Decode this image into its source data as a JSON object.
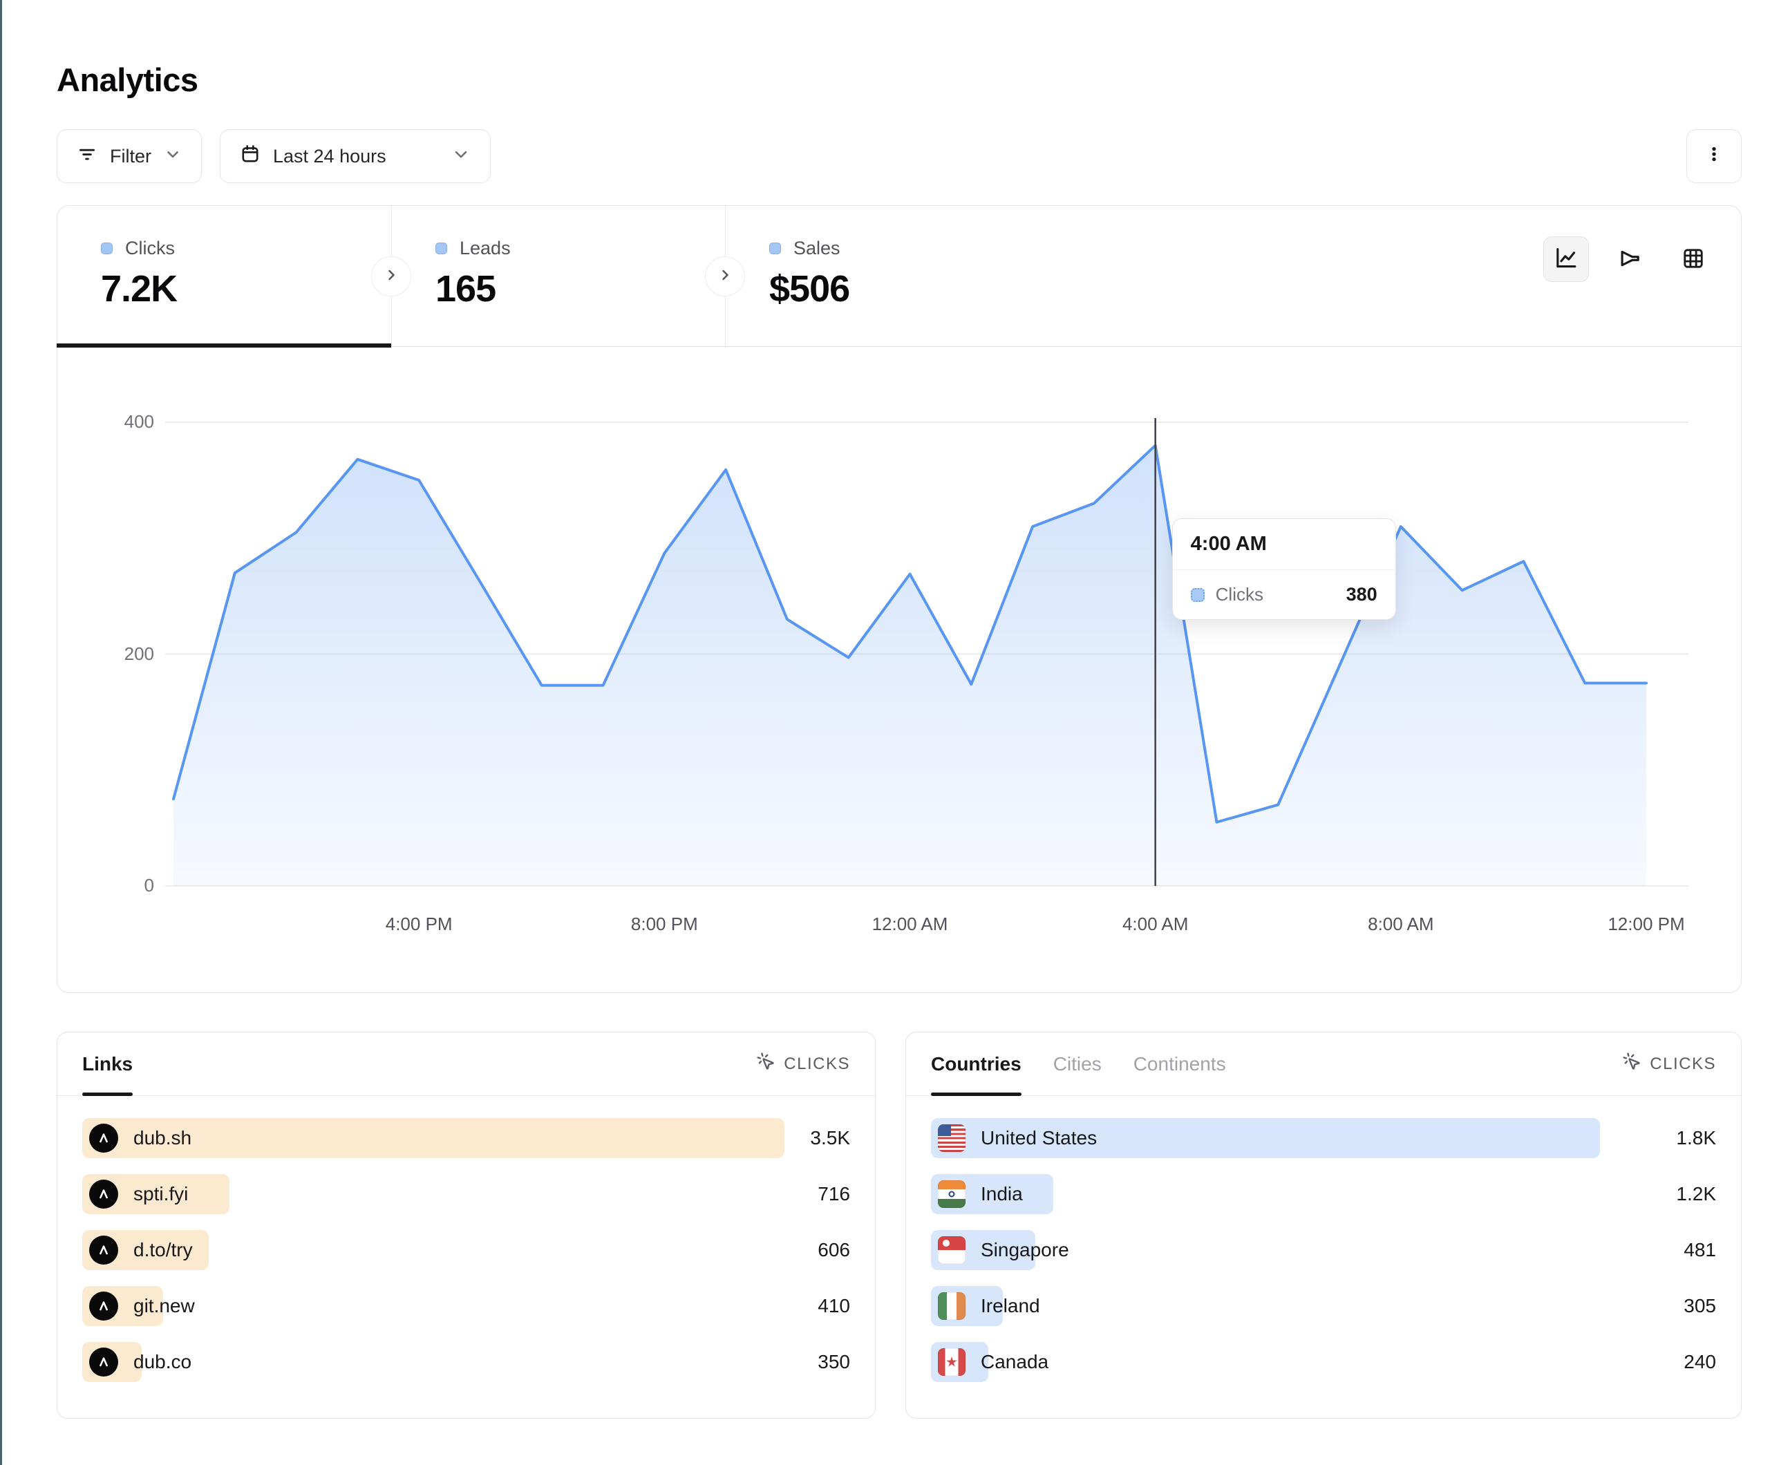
{
  "page": {
    "title": "Analytics"
  },
  "toolbar": {
    "filter_label": "Filter",
    "date_range_label": "Last 24 hours",
    "icons": [
      "filter-icon",
      "calendar-icon",
      "chevron-down-icon",
      "kebab-menu-icon"
    ]
  },
  "stats": [
    {
      "label": "Clicks",
      "value": "7.2K",
      "active": true
    },
    {
      "label": "Leads",
      "value": "165",
      "active": false
    },
    {
      "label": "Sales",
      "value": "$506",
      "active": false
    }
  ],
  "chart_views": [
    {
      "icon": "line-chart-icon",
      "active": true
    },
    {
      "icon": "funnel-icon",
      "active": false
    },
    {
      "icon": "grid-icon",
      "active": false
    }
  ],
  "chart_data": {
    "type": "area",
    "title": "Clicks over last 24 hours",
    "series_name": "Clicks",
    "x": [
      "12:00 PM",
      "1:00 PM",
      "2:00 PM",
      "3:00 PM",
      "4:00 PM",
      "5:00 PM",
      "6:00 PM",
      "7:00 PM",
      "8:00 PM",
      "9:00 PM",
      "10:00 PM",
      "11:00 PM",
      "12:00 AM",
      "1:00 AM",
      "2:00 AM",
      "3:00 AM",
      "4:00 AM",
      "5:00 AM",
      "6:00 AM",
      "7:00 AM",
      "8:00 AM",
      "9:00 AM",
      "10:00 AM",
      "11:00 AM",
      "12:00 PM"
    ],
    "values": [
      75,
      270,
      305,
      368,
      350,
      262,
      173,
      173,
      287,
      359,
      230,
      197,
      269,
      174,
      310,
      330,
      380,
      55,
      70,
      190,
      310,
      255,
      280,
      175,
      175
    ],
    "ylim": [
      0,
      400
    ],
    "yticks": [
      0,
      200,
      400
    ],
    "xtick_labels": [
      "4:00 PM",
      "8:00 PM",
      "12:00 AM",
      "4:00 AM",
      "8:00 AM",
      "12:00 PM"
    ],
    "xtick_indices": [
      4,
      8,
      12,
      16,
      20,
      24
    ],
    "grid": true,
    "legend": false,
    "line_color": "#5896f3",
    "cursor_index": 16
  },
  "tooltip": {
    "time": "4:00 AM",
    "label": "Clicks",
    "value": "380"
  },
  "links_panel": {
    "tab": "Links",
    "metric": "CLICKS",
    "metric_icon": "cursor-click-icon",
    "bar_color": "#fcead0",
    "rows": [
      {
        "label": "dub.sh",
        "value": "3.5K",
        "pct": 100
      },
      {
        "label": "spti.fyi",
        "value": "716",
        "pct": 21
      },
      {
        "label": "d.to/try",
        "value": "606",
        "pct": 18
      },
      {
        "label": "git.new",
        "value": "410",
        "pct": 11.5
      },
      {
        "label": "dub.co",
        "value": "350",
        "pct": 8.5
      }
    ]
  },
  "countries_panel": {
    "tabs": [
      {
        "label": "Countries",
        "active": true
      },
      {
        "label": "Cities",
        "active": false
      },
      {
        "label": "Continents",
        "active": false
      }
    ],
    "metric": "CLICKS",
    "metric_icon": "cursor-click-icon",
    "bar_color": "#d7e6fb",
    "rows": [
      {
        "label": "United States",
        "flag": "us",
        "value": "1.8K",
        "pct": 93
      },
      {
        "label": "India",
        "flag": "in",
        "value": "1.2K",
        "pct": 17
      },
      {
        "label": "Singapore",
        "flag": "sg",
        "value": "481",
        "pct": 14.5
      },
      {
        "label": "Ireland",
        "flag": "ie",
        "value": "305",
        "pct": 10
      },
      {
        "label": "Canada",
        "flag": "ca",
        "value": "240",
        "pct": 8
      }
    ]
  },
  "colors": {
    "accent_edge": "#4b636d",
    "chart_line": "#5896f3",
    "links_bar": "#fcead0",
    "countries_bar": "#d7e6fb",
    "active_tab_underline": "#18181b"
  }
}
